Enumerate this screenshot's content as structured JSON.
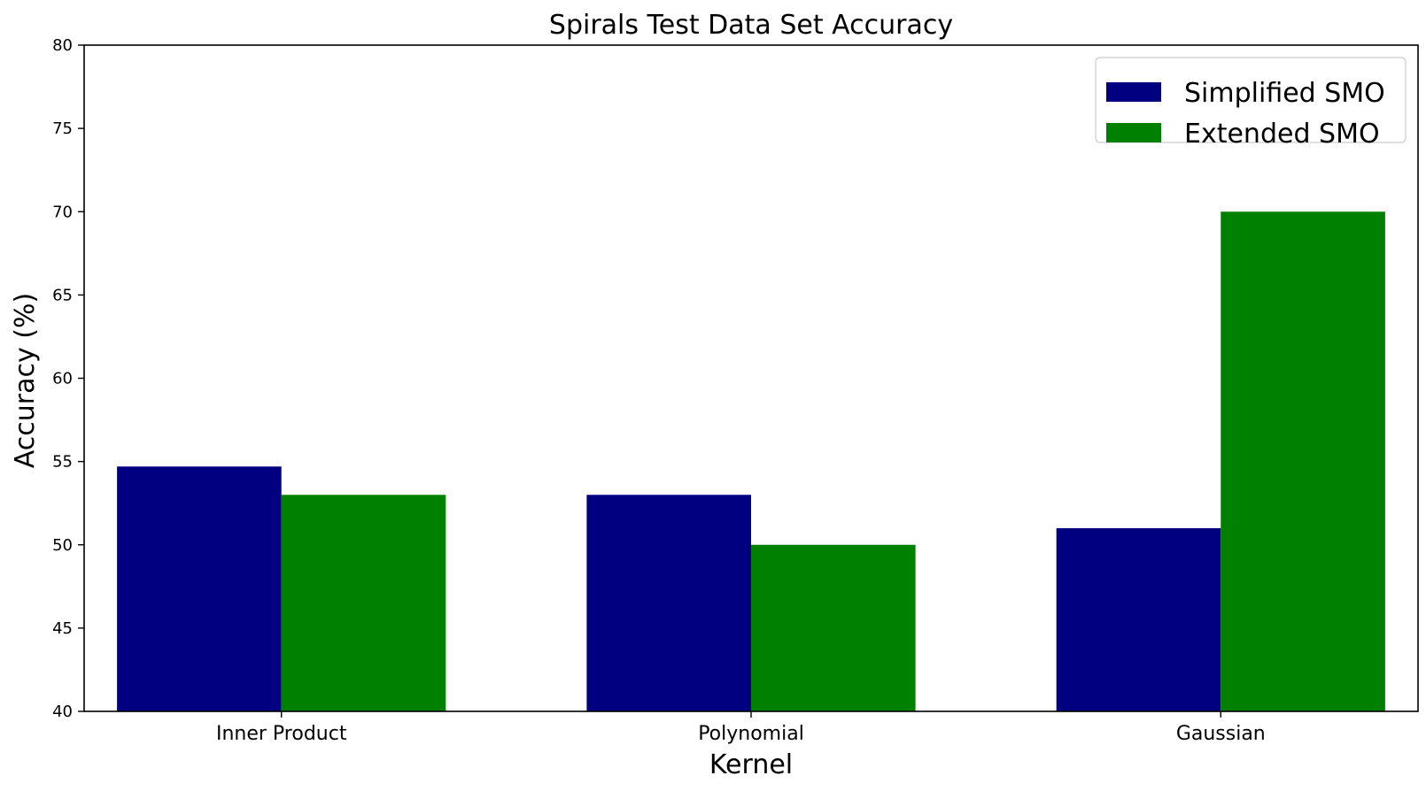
{
  "chart_data": {
    "type": "bar",
    "title": "Spirals Test Data Set Accuracy",
    "xlabel": "Kernel",
    "ylabel": "Accuracy (%)",
    "categories": [
      "Inner Product",
      "Polynomial",
      "Gaussian"
    ],
    "series": [
      {
        "name": "Simplified SMO",
        "color": "#000080",
        "values": [
          54.7,
          53.0,
          51.0
        ]
      },
      {
        "name": "Extended SMO",
        "color": "#008000",
        "values": [
          53.0,
          50.0,
          70.0
        ]
      }
    ],
    "ylim": [
      40,
      80
    ],
    "yticks": [
      40,
      45,
      50,
      55,
      60,
      65,
      70,
      75,
      80
    ],
    "grid": false,
    "legend_position": "top-right"
  }
}
